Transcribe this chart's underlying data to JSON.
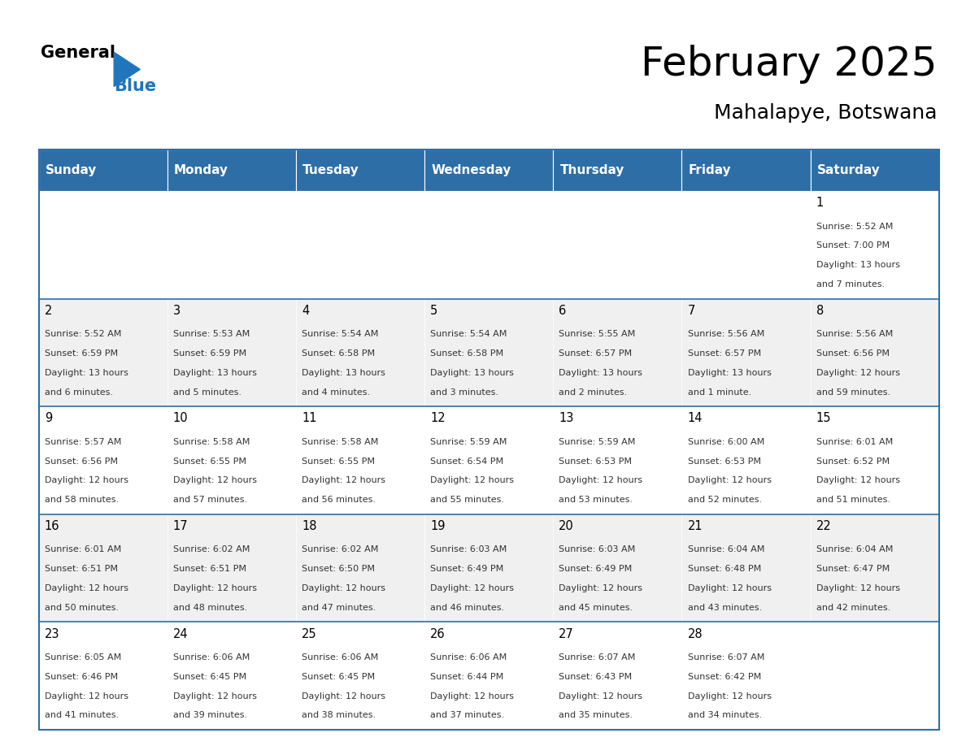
{
  "title": "February 2025",
  "subtitle": "Mahalapye, Botswana",
  "header_color": "#2E6EA6",
  "header_text_color": "#FFFFFF",
  "cell_bg_color": "#FFFFFF",
  "alt_cell_bg_color": "#F0F0F0",
  "text_color": "#333333",
  "border_color": "#2E6EA6",
  "days_of_week": [
    "Sunday",
    "Monday",
    "Tuesday",
    "Wednesday",
    "Thursday",
    "Friday",
    "Saturday"
  ],
  "calendar_data": [
    [
      {
        "day": null,
        "sunrise": null,
        "sunset": null,
        "daylight": null
      },
      {
        "day": null,
        "sunrise": null,
        "sunset": null,
        "daylight": null
      },
      {
        "day": null,
        "sunrise": null,
        "sunset": null,
        "daylight": null
      },
      {
        "day": null,
        "sunrise": null,
        "sunset": null,
        "daylight": null
      },
      {
        "day": null,
        "sunrise": null,
        "sunset": null,
        "daylight": null
      },
      {
        "day": null,
        "sunrise": null,
        "sunset": null,
        "daylight": null
      },
      {
        "day": 1,
        "sunrise": "5:52 AM",
        "sunset": "7:00 PM",
        "daylight": "13 hours and 7 minutes."
      }
    ],
    [
      {
        "day": 2,
        "sunrise": "5:52 AM",
        "sunset": "6:59 PM",
        "daylight": "13 hours and 6 minutes."
      },
      {
        "day": 3,
        "sunrise": "5:53 AM",
        "sunset": "6:59 PM",
        "daylight": "13 hours and 5 minutes."
      },
      {
        "day": 4,
        "sunrise": "5:54 AM",
        "sunset": "6:58 PM",
        "daylight": "13 hours and 4 minutes."
      },
      {
        "day": 5,
        "sunrise": "5:54 AM",
        "sunset": "6:58 PM",
        "daylight": "13 hours and 3 minutes."
      },
      {
        "day": 6,
        "sunrise": "5:55 AM",
        "sunset": "6:57 PM",
        "daylight": "13 hours and 2 minutes."
      },
      {
        "day": 7,
        "sunrise": "5:56 AM",
        "sunset": "6:57 PM",
        "daylight": "13 hours and 1 minute."
      },
      {
        "day": 8,
        "sunrise": "5:56 AM",
        "sunset": "6:56 PM",
        "daylight": "12 hours and 59 minutes."
      }
    ],
    [
      {
        "day": 9,
        "sunrise": "5:57 AM",
        "sunset": "6:56 PM",
        "daylight": "12 hours and 58 minutes."
      },
      {
        "day": 10,
        "sunrise": "5:58 AM",
        "sunset": "6:55 PM",
        "daylight": "12 hours and 57 minutes."
      },
      {
        "day": 11,
        "sunrise": "5:58 AM",
        "sunset": "6:55 PM",
        "daylight": "12 hours and 56 minutes."
      },
      {
        "day": 12,
        "sunrise": "5:59 AM",
        "sunset": "6:54 PM",
        "daylight": "12 hours and 55 minutes."
      },
      {
        "day": 13,
        "sunrise": "5:59 AM",
        "sunset": "6:53 PM",
        "daylight": "12 hours and 53 minutes."
      },
      {
        "day": 14,
        "sunrise": "6:00 AM",
        "sunset": "6:53 PM",
        "daylight": "12 hours and 52 minutes."
      },
      {
        "day": 15,
        "sunrise": "6:01 AM",
        "sunset": "6:52 PM",
        "daylight": "12 hours and 51 minutes."
      }
    ],
    [
      {
        "day": 16,
        "sunrise": "6:01 AM",
        "sunset": "6:51 PM",
        "daylight": "12 hours and 50 minutes."
      },
      {
        "day": 17,
        "sunrise": "6:02 AM",
        "sunset": "6:51 PM",
        "daylight": "12 hours and 48 minutes."
      },
      {
        "day": 18,
        "sunrise": "6:02 AM",
        "sunset": "6:50 PM",
        "daylight": "12 hours and 47 minutes."
      },
      {
        "day": 19,
        "sunrise": "6:03 AM",
        "sunset": "6:49 PM",
        "daylight": "12 hours and 46 minutes."
      },
      {
        "day": 20,
        "sunrise": "6:03 AM",
        "sunset": "6:49 PM",
        "daylight": "12 hours and 45 minutes."
      },
      {
        "day": 21,
        "sunrise": "6:04 AM",
        "sunset": "6:48 PM",
        "daylight": "12 hours and 43 minutes."
      },
      {
        "day": 22,
        "sunrise": "6:04 AM",
        "sunset": "6:47 PM",
        "daylight": "12 hours and 42 minutes."
      }
    ],
    [
      {
        "day": 23,
        "sunrise": "6:05 AM",
        "sunset": "6:46 PM",
        "daylight": "12 hours and 41 minutes."
      },
      {
        "day": 24,
        "sunrise": "6:06 AM",
        "sunset": "6:45 PM",
        "daylight": "12 hours and 39 minutes."
      },
      {
        "day": 25,
        "sunrise": "6:06 AM",
        "sunset": "6:45 PM",
        "daylight": "12 hours and 38 minutes."
      },
      {
        "day": 26,
        "sunrise": "6:06 AM",
        "sunset": "6:44 PM",
        "daylight": "12 hours and 37 minutes."
      },
      {
        "day": 27,
        "sunrise": "6:07 AM",
        "sunset": "6:43 PM",
        "daylight": "12 hours and 35 minutes."
      },
      {
        "day": 28,
        "sunrise": "6:07 AM",
        "sunset": "6:42 PM",
        "daylight": "12 hours and 34 minutes."
      },
      {
        "day": null,
        "sunrise": null,
        "sunset": null,
        "daylight": null
      }
    ]
  ],
  "logo_text_general": "General",
  "logo_text_blue": "Blue",
  "fig_width": 11.88,
  "fig_height": 9.18
}
